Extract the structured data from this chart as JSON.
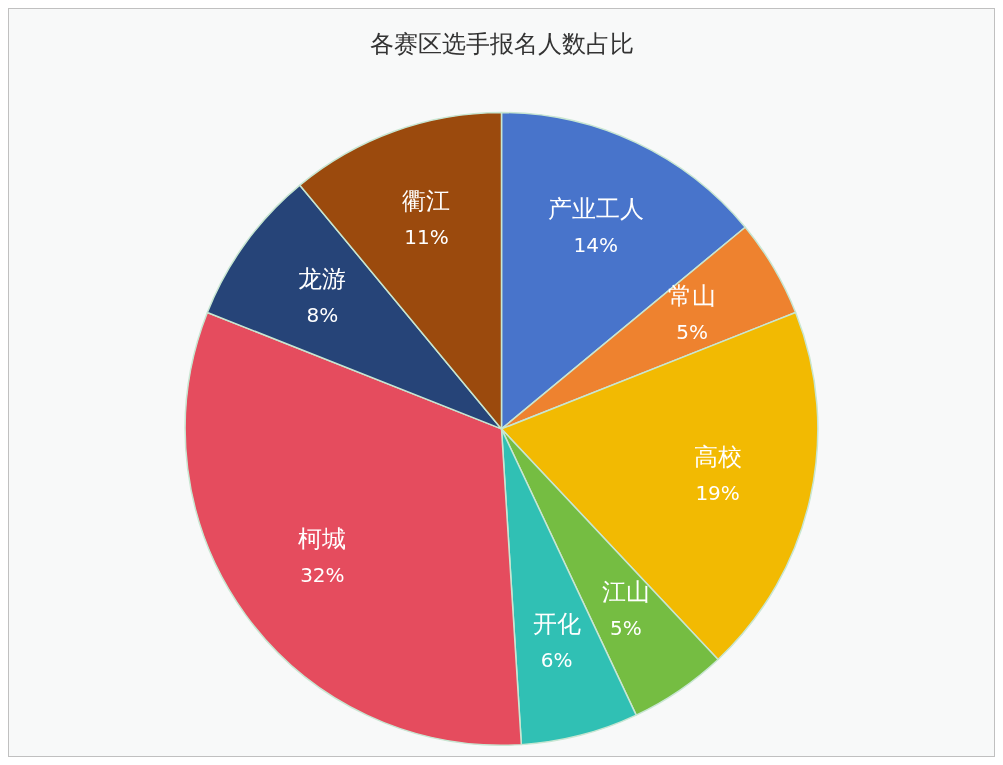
{
  "chart_data": {
    "type": "pie",
    "title": "各赛区选手报名人数占比",
    "categories": [
      "产业工人",
      "常山",
      "高校",
      "江山",
      "开化",
      "柯城",
      "龙游",
      "衢江"
    ],
    "values": [
      14,
      5,
      19,
      5,
      6,
      32,
      8,
      11
    ],
    "value_labels": [
      "14%",
      "5%",
      "19%",
      "5%",
      "6%",
      "32%",
      "8%",
      "11%"
    ],
    "colors": [
      "#4874cb",
      "#ee822f",
      "#f2ba02",
      "#75bd42",
      "#30c0b4",
      "#e54c5e",
      "#264478",
      "#9b4a0d"
    ],
    "legend": false
  }
}
